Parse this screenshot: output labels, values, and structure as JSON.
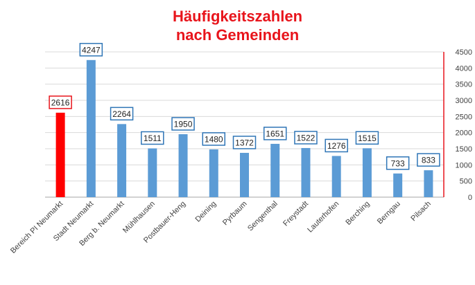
{
  "title_lines": [
    "Häufigkeitszahlen",
    "nach Gemeinden"
  ],
  "colors": {
    "title": "#e8141b",
    "highlight_bar": "#ff0000",
    "bar": "#5b9bd5",
    "highlight_label_border": "#e8141b",
    "label_border": "#2e75b6",
    "axis_right": "#e8141b",
    "grid": "#d9d9d9"
  },
  "chart_data": {
    "type": "bar",
    "title": "Häufigkeitszahlen nach Gemeinden",
    "categories": [
      "Bereich PI Neumarkt",
      "Stadt Neumarkt",
      "Berg b. Neumarkt",
      "Mühlhausen",
      "Postbauer-Heng",
      "Deining",
      "Pyrbaum",
      "Sengenthal",
      "Freystadt",
      "Lauterhofen",
      "Berching",
      "Berngau",
      "Pilsach"
    ],
    "values": [
      2616,
      4247,
      2264,
      1511,
      1950,
      1480,
      1372,
      1651,
      1522,
      1276,
      1515,
      733,
      833
    ],
    "highlight_index": 0,
    "ylim": [
      0,
      4500
    ],
    "yticks": [
      0,
      500,
      1000,
      1500,
      2000,
      2500,
      3000,
      3500,
      4000,
      4500
    ],
    "y_axis_side": "right",
    "grid": true,
    "legend": "none",
    "data_labels": true
  }
}
